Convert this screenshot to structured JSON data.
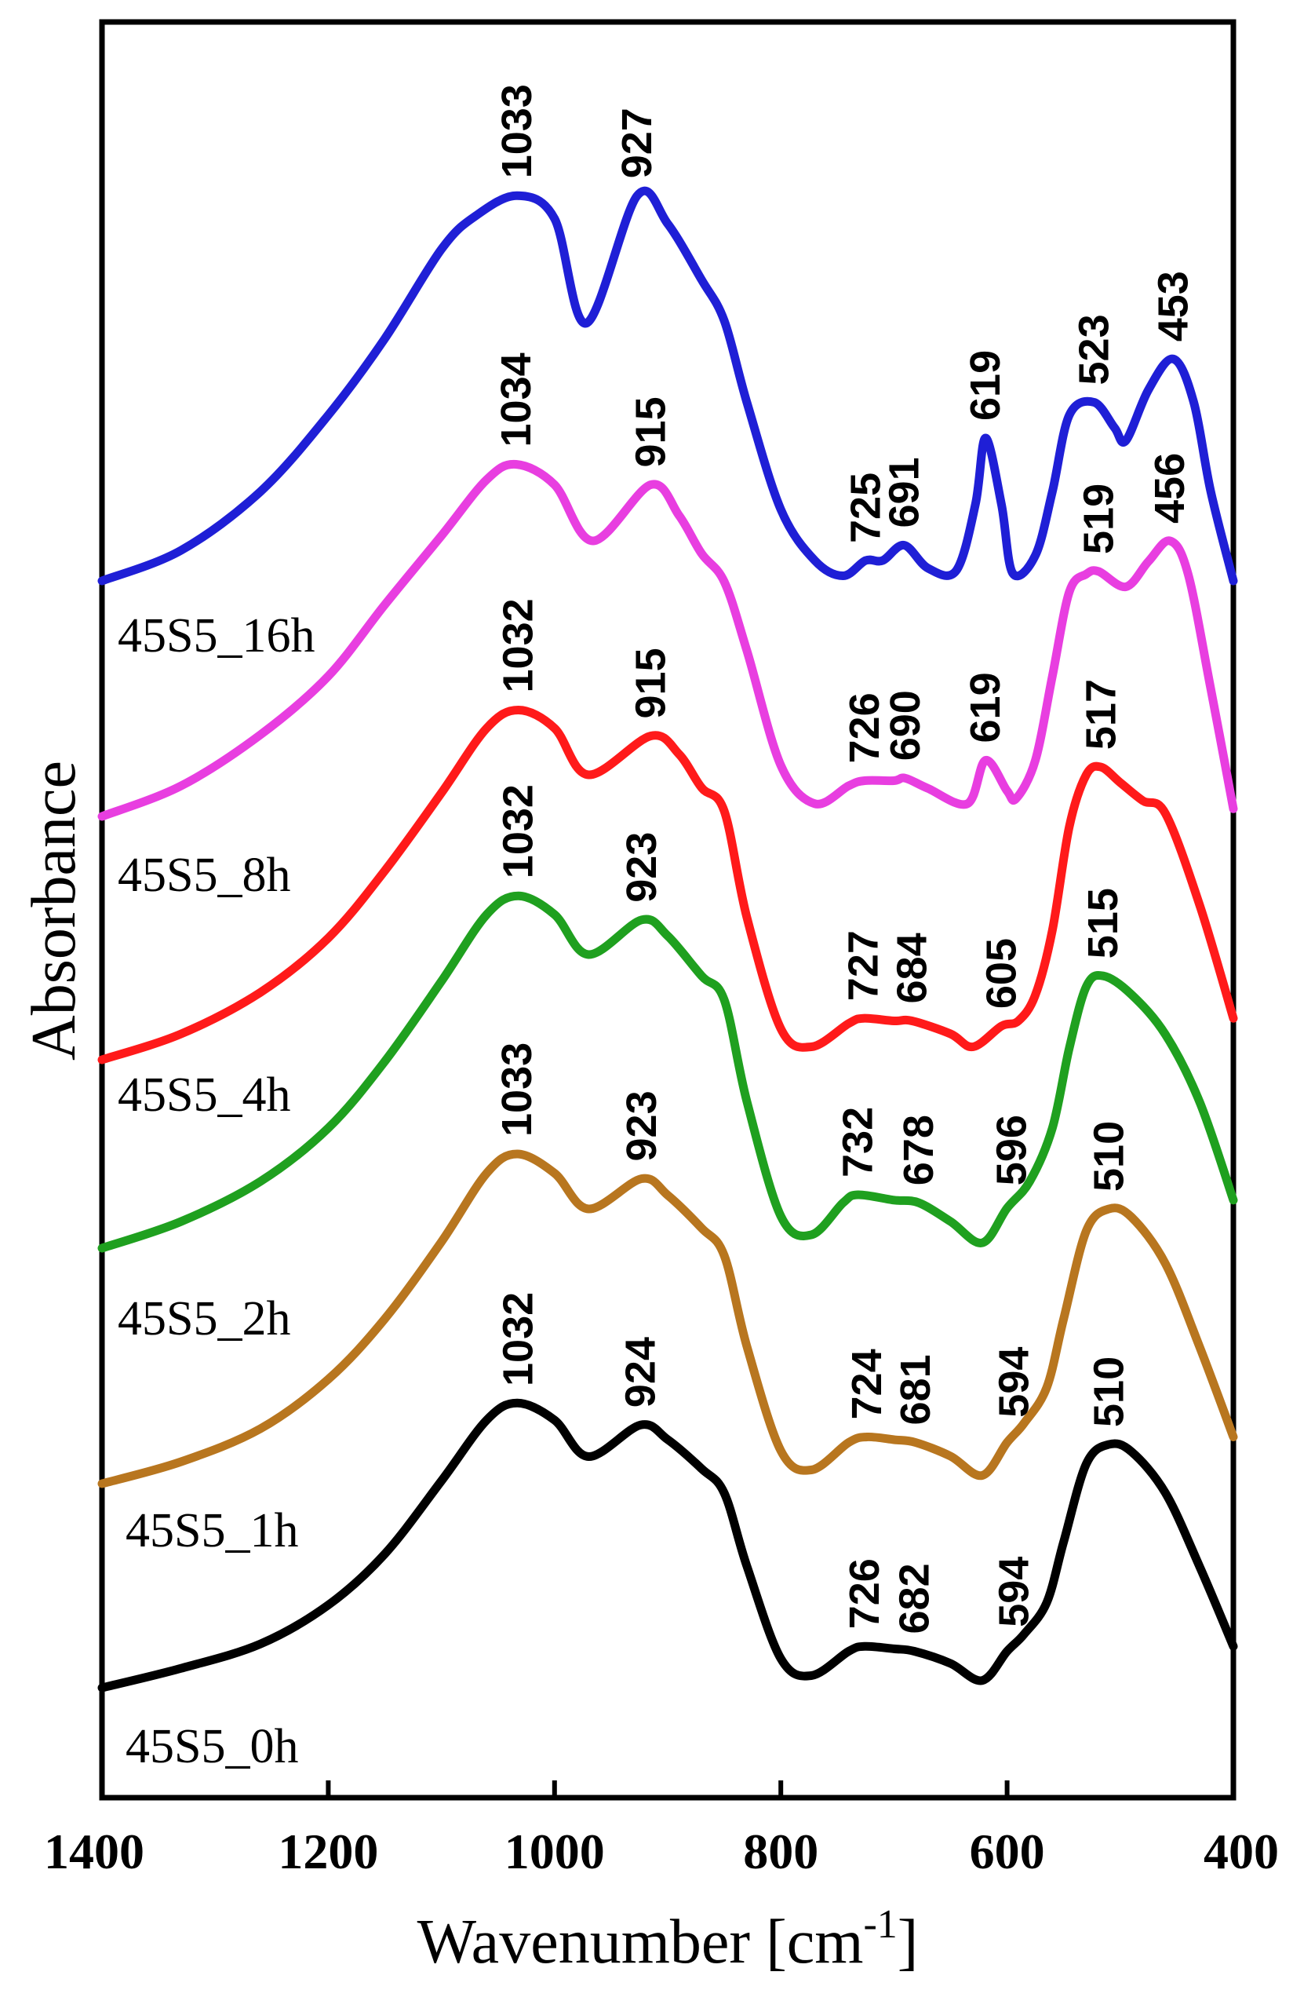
{
  "chart_data": {
    "type": "line",
    "xlabel": "Wavenumber [cm",
    "xlabel_sup": "-1",
    "xlabel_suffix": "]",
    "ylabel": "Absorbance",
    "xlim": [
      1400,
      400
    ],
    "x_reversed": true,
    "y_ticks_shown": false,
    "grid": false,
    "xticks": [
      {
        "value": 1400,
        "label": "1400"
      },
      {
        "value": 1200,
        "label": "1200"
      },
      {
        "value": 1000,
        "label": "1000"
      },
      {
        "value": 800,
        "label": "800"
      },
      {
        "value": 600,
        "label": "600"
      },
      {
        "value": 400,
        "label": "400"
      }
    ],
    "series": [
      {
        "name": "45S5_0h",
        "color": "#000000",
        "points": [
          [
            1400,
            0.0
          ],
          [
            1330,
            0.08
          ],
          [
            1260,
            0.18
          ],
          [
            1200,
            0.34
          ],
          [
            1150,
            0.55
          ],
          [
            1100,
            0.85
          ],
          [
            1060,
            1.1
          ],
          [
            1033,
            1.17
          ],
          [
            1000,
            1.1
          ],
          [
            970,
            0.95
          ],
          [
            924,
            1.08
          ],
          [
            900,
            1.02
          ],
          [
            870,
            0.9
          ],
          [
            850,
            0.8
          ],
          [
            830,
            0.5
          ],
          [
            800,
            0.12
          ],
          [
            773,
            0.05
          ],
          [
            740,
            0.15
          ],
          [
            726,
            0.17
          ],
          [
            700,
            0.16
          ],
          [
            682,
            0.15
          ],
          [
            650,
            0.1
          ],
          [
            622,
            0.03
          ],
          [
            600,
            0.15
          ],
          [
            585,
            0.22
          ],
          [
            565,
            0.35
          ],
          [
            550,
            0.6
          ],
          [
            530,
            0.92
          ],
          [
            510,
            1.0
          ],
          [
            490,
            0.97
          ],
          [
            460,
            0.8
          ],
          [
            430,
            0.5
          ],
          [
            400,
            0.17
          ]
        ]
      },
      {
        "name": "45S5_1h",
        "color": "#b8761f",
        "points": [
          [
            1400,
            0.0
          ],
          [
            1330,
            0.08
          ],
          [
            1260,
            0.2
          ],
          [
            1200,
            0.38
          ],
          [
            1150,
            0.6
          ],
          [
            1100,
            0.88
          ],
          [
            1060,
            1.13
          ],
          [
            1033,
            1.2
          ],
          [
            1000,
            1.13
          ],
          [
            970,
            1.0
          ],
          [
            923,
            1.11
          ],
          [
            900,
            1.05
          ],
          [
            870,
            0.93
          ],
          [
            850,
            0.83
          ],
          [
            830,
            0.5
          ],
          [
            800,
            0.12
          ],
          [
            773,
            0.05
          ],
          [
            740,
            0.15
          ],
          [
            724,
            0.17
          ],
          [
            700,
            0.16
          ],
          [
            681,
            0.15
          ],
          [
            650,
            0.1
          ],
          [
            622,
            0.03
          ],
          [
            600,
            0.15
          ],
          [
            585,
            0.22
          ],
          [
            565,
            0.35
          ],
          [
            550,
            0.6
          ],
          [
            530,
            0.92
          ],
          [
            510,
            1.0
          ],
          [
            490,
            0.97
          ],
          [
            460,
            0.8
          ],
          [
            430,
            0.5
          ],
          [
            400,
            0.17
          ]
        ]
      },
      {
        "name": "45S5_2h",
        "color": "#1fa01f",
        "points": [
          [
            1400,
            0.0
          ],
          [
            1330,
            0.1
          ],
          [
            1260,
            0.25
          ],
          [
            1200,
            0.45
          ],
          [
            1150,
            0.7
          ],
          [
            1100,
            1.0
          ],
          [
            1060,
            1.25
          ],
          [
            1032,
            1.32
          ],
          [
            1000,
            1.25
          ],
          [
            970,
            1.1
          ],
          [
            923,
            1.23
          ],
          [
            900,
            1.17
          ],
          [
            870,
            1.02
          ],
          [
            850,
            0.93
          ],
          [
            830,
            0.55
          ],
          [
            800,
            0.12
          ],
          [
            773,
            0.05
          ],
          [
            745,
            0.17
          ],
          [
            732,
            0.2
          ],
          [
            700,
            0.18
          ],
          [
            678,
            0.17
          ],
          [
            650,
            0.1
          ],
          [
            622,
            0.02
          ],
          [
            600,
            0.15
          ],
          [
            580,
            0.25
          ],
          [
            560,
            0.45
          ],
          [
            545,
            0.75
          ],
          [
            530,
            0.98
          ],
          [
            515,
            1.02
          ],
          [
            490,
            0.95
          ],
          [
            460,
            0.8
          ],
          [
            430,
            0.55
          ],
          [
            400,
            0.18
          ]
        ]
      },
      {
        "name": "45S5_4h",
        "color": "#ff1a1a",
        "points": [
          [
            1400,
            0.0
          ],
          [
            1330,
            0.1
          ],
          [
            1260,
            0.26
          ],
          [
            1200,
            0.47
          ],
          [
            1150,
            0.73
          ],
          [
            1100,
            1.03
          ],
          [
            1060,
            1.28
          ],
          [
            1032,
            1.35
          ],
          [
            1000,
            1.28
          ],
          [
            970,
            1.1
          ],
          [
            915,
            1.25
          ],
          [
            890,
            1.18
          ],
          [
            870,
            1.05
          ],
          [
            850,
            0.96
          ],
          [
            830,
            0.55
          ],
          [
            800,
            0.12
          ],
          [
            773,
            0.05
          ],
          [
            740,
            0.14
          ],
          [
            727,
            0.16
          ],
          [
            700,
            0.15
          ],
          [
            684,
            0.15
          ],
          [
            650,
            0.1
          ],
          [
            630,
            0.05
          ],
          [
            605,
            0.13
          ],
          [
            590,
            0.15
          ],
          [
            575,
            0.25
          ],
          [
            560,
            0.5
          ],
          [
            545,
            0.9
          ],
          [
            530,
            1.1
          ],
          [
            517,
            1.13
          ],
          [
            500,
            1.07
          ],
          [
            480,
            1.0
          ],
          [
            460,
            0.95
          ],
          [
            430,
            0.6
          ],
          [
            400,
            0.16
          ]
        ]
      },
      {
        "name": "45S5_8h",
        "color": "#e83ee0",
        "points": [
          [
            1400,
            0.0
          ],
          [
            1330,
            0.12
          ],
          [
            1260,
            0.32
          ],
          [
            1200,
            0.55
          ],
          [
            1150,
            0.83
          ],
          [
            1100,
            1.1
          ],
          [
            1060,
            1.32
          ],
          [
            1034,
            1.38
          ],
          [
            1000,
            1.3
          ],
          [
            966,
            1.08
          ],
          [
            915,
            1.3
          ],
          [
            890,
            1.18
          ],
          [
            870,
            1.03
          ],
          [
            850,
            0.92
          ],
          [
            830,
            0.65
          ],
          [
            800,
            0.2
          ],
          [
            770,
            0.05
          ],
          [
            740,
            0.12
          ],
          [
            726,
            0.14
          ],
          [
            700,
            0.14
          ],
          [
            690,
            0.15
          ],
          [
            670,
            0.11
          ],
          [
            635,
            0.05
          ],
          [
            619,
            0.22
          ],
          [
            600,
            0.1
          ],
          [
            592,
            0.07
          ],
          [
            575,
            0.22
          ],
          [
            560,
            0.55
          ],
          [
            545,
            0.88
          ],
          [
            530,
            0.95
          ],
          [
            519,
            0.96
          ],
          [
            495,
            0.9
          ],
          [
            475,
            1.0
          ],
          [
            456,
            1.08
          ],
          [
            440,
            0.95
          ],
          [
            420,
            0.5
          ],
          [
            400,
            0.03
          ]
        ]
      },
      {
        "name": "45S5_16h",
        "color": "#1f1fd6",
        "points": [
          [
            1400,
            0.0
          ],
          [
            1330,
            0.12
          ],
          [
            1260,
            0.35
          ],
          [
            1200,
            0.65
          ],
          [
            1150,
            0.95
          ],
          [
            1100,
            1.3
          ],
          [
            1070,
            1.43
          ],
          [
            1033,
            1.51
          ],
          [
            1000,
            1.42
          ],
          [
            972,
            1.01
          ],
          [
            927,
            1.51
          ],
          [
            900,
            1.4
          ],
          [
            870,
            1.18
          ],
          [
            850,
            1.02
          ],
          [
            830,
            0.7
          ],
          [
            800,
            0.28
          ],
          [
            770,
            0.08
          ],
          [
            745,
            0.02
          ],
          [
            725,
            0.08
          ],
          [
            710,
            0.08
          ],
          [
            691,
            0.14
          ],
          [
            670,
            0.05
          ],
          [
            645,
            0.04
          ],
          [
            628,
            0.3
          ],
          [
            619,
            0.56
          ],
          [
            605,
            0.3
          ],
          [
            595,
            0.03
          ],
          [
            575,
            0.1
          ],
          [
            560,
            0.35
          ],
          [
            545,
            0.65
          ],
          [
            523,
            0.7
          ],
          [
            505,
            0.6
          ],
          [
            495,
            0.55
          ],
          [
            475,
            0.75
          ],
          [
            453,
            0.87
          ],
          [
            435,
            0.7
          ],
          [
            420,
            0.35
          ],
          [
            400,
            0.0
          ]
        ]
      }
    ],
    "series_label_text": [
      "45S5_0h",
      "45S5_1h",
      "45S5_2h",
      "45S5_4h",
      "45S5_8h",
      "45S5_16h"
    ],
    "annotations": [
      {
        "series": 0,
        "labels": [
          "1032",
          "924",
          "726",
          "682",
          "594",
          "510"
        ],
        "x": [
          1032,
          924,
          726,
          682,
          594,
          510
        ]
      },
      {
        "series": 1,
        "labels": [
          "1033",
          "923",
          "724",
          "681",
          "594",
          "510"
        ],
        "x": [
          1033,
          923,
          724,
          681,
          594,
          510
        ]
      },
      {
        "series": 2,
        "labels": [
          "1032",
          "923",
          "732",
          "678",
          "596",
          "515"
        ],
        "x": [
          1032,
          923,
          732,
          678,
          596,
          515
        ]
      },
      {
        "series": 3,
        "labels": [
          "1032",
          "915",
          "727",
          "684",
          "605",
          "517"
        ],
        "x": [
          1032,
          915,
          727,
          684,
          605,
          517
        ]
      },
      {
        "series": 4,
        "labels": [
          "1034",
          "915",
          "726",
          "690",
          "619",
          "519",
          "456"
        ],
        "x": [
          1034,
          915,
          726,
          690,
          619,
          519,
          456
        ]
      },
      {
        "series": 5,
        "labels": [
          "1033",
          "927",
          "725",
          "691",
          "619",
          "523",
          "453"
        ],
        "x": [
          1033,
          927,
          725,
          691,
          619,
          523,
          453
        ]
      }
    ]
  }
}
